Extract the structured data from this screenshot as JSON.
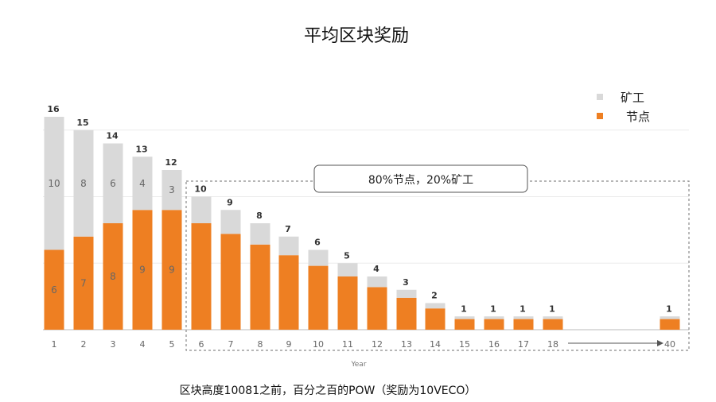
{
  "chart_data": {
    "type": "bar",
    "stacked": true,
    "title": "平均区块奖励",
    "xlabel": "Year",
    "categories": [
      "1",
      "2",
      "3",
      "4",
      "5",
      "6",
      "7",
      "8",
      "9",
      "10",
      "11",
      "12",
      "13",
      "14",
      "15",
      "16",
      "17",
      "18",
      "40"
    ],
    "totals": [
      16,
      15,
      14,
      13,
      12,
      10,
      9,
      8,
      7,
      6,
      5,
      4,
      3,
      2,
      1,
      1,
      1,
      1,
      1
    ],
    "series": [
      {
        "name": "节点",
        "color": "#EE7F22",
        "values": [
          6,
          7,
          8,
          9,
          9,
          8,
          7.2,
          6.4,
          5.6,
          4.8,
          4,
          3.2,
          2.4,
          1.6,
          0.8,
          0.8,
          0.8,
          0.8,
          0.8
        ],
        "shown_labels": [
          6,
          7,
          8,
          9,
          9,
          null,
          null,
          null,
          null,
          null,
          null,
          null,
          null,
          null,
          null,
          null,
          null,
          null,
          null
        ]
      },
      {
        "name": "矿工",
        "color": "#D9D9D9",
        "values": [
          10,
          8,
          6,
          4,
          3,
          2,
          1.8,
          1.6,
          1.4,
          1.2,
          1,
          0.8,
          0.6,
          0.4,
          0.2,
          0.2,
          0.2,
          0.2,
          0.2
        ],
        "shown_labels": [
          10,
          8,
          6,
          4,
          3,
          null,
          null,
          null,
          null,
          null,
          null,
          null,
          null,
          null,
          null,
          null,
          null,
          null,
          null
        ]
      }
    ],
    "ylim": [
      0,
      16
    ],
    "grid": true,
    "legend_position": "top-right",
    "callout": "80%节点，20%矿工"
  },
  "footnote": "区块高度10081之前，百分之百的POW（奖励为10VECO）"
}
